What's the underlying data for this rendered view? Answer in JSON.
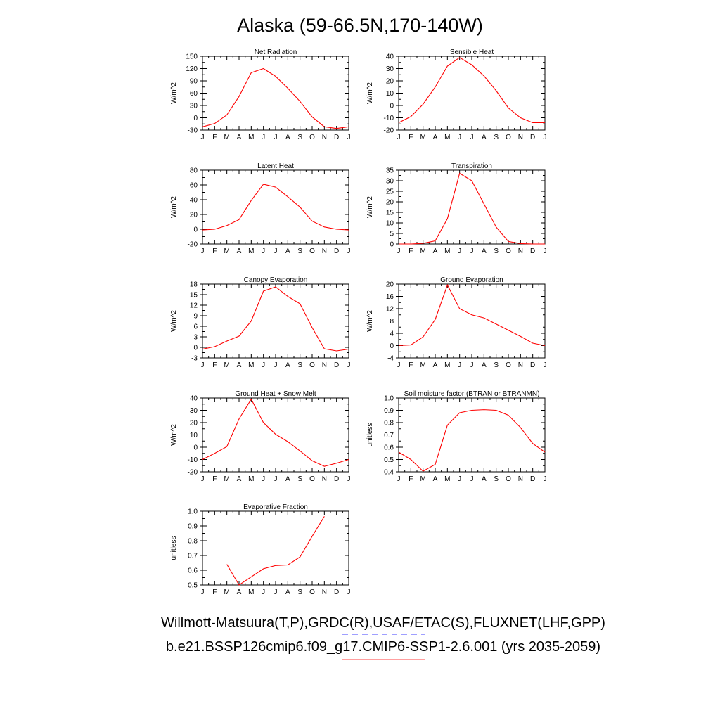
{
  "title": "Alaska (59-66.5N,170-140W)",
  "months": [
    "J",
    "F",
    "M",
    "A",
    "M",
    "J",
    "J",
    "A",
    "S",
    "O",
    "N",
    "D",
    "J"
  ],
  "colors": {
    "series": "#ff0000",
    "axis": "#000000",
    "legend_obs": "#6666ff",
    "legend_model": "#ff6666"
  },
  "legend": {
    "obs_line": "Willmott-Matsuura(T,P),GRDC(R),USAF/ETAC(S),FLUXNET(LHF,GPP)",
    "model_line": "b.e21.BSSP126cmip6.f09_g17.CMIP6-SSP1-2.6.001 (yrs 2035-2059)"
  },
  "chart_data": [
    {
      "type": "line",
      "title": "Net Radiation",
      "ylabel": "W/m^2",
      "ylim": [
        -30,
        150
      ],
      "yticks": [
        -30,
        0,
        30,
        60,
        90,
        120,
        150
      ],
      "ytick_labels": [
        "-30",
        "0",
        "30",
        "60",
        "90",
        "120",
        "150"
      ],
      "values": [
        -22,
        -14,
        7,
        52,
        110,
        120,
        101,
        72,
        40,
        2,
        -22,
        -26,
        -22
      ]
    },
    {
      "type": "line",
      "title": "Sensible Heat",
      "ylabel": "W/m^2",
      "ylim": [
        -20,
        40
      ],
      "yticks": [
        -20,
        -10,
        0,
        10,
        20,
        30,
        40
      ],
      "ytick_labels": [
        "-20",
        "-10",
        "0",
        "10",
        "20",
        "30",
        "40"
      ],
      "values": [
        -14,
        -9,
        1,
        15,
        32,
        39,
        33,
        24,
        12,
        -2,
        -10,
        -14,
        -14
      ]
    },
    {
      "type": "line",
      "title": "Latent Heat",
      "ylabel": "W/m^2",
      "ylim": [
        -20,
        80
      ],
      "yticks": [
        -20,
        0,
        20,
        40,
        60,
        80
      ],
      "ytick_labels": [
        "-20",
        "0",
        "20",
        "40",
        "60",
        "80"
      ],
      "values": [
        -1,
        0,
        5,
        13,
        39,
        61,
        57,
        44,
        30,
        11,
        3,
        0,
        -1
      ]
    },
    {
      "type": "line",
      "title": "Transpiration",
      "ylabel": "W/m^2",
      "ylim": [
        0,
        35
      ],
      "yticks": [
        0,
        5,
        10,
        15,
        20,
        25,
        30,
        35
      ],
      "ytick_labels": [
        "0",
        "5",
        "10",
        "15",
        "20",
        "25",
        "30",
        "35"
      ],
      "values": [
        0,
        0,
        0.3,
        1.5,
        12,
        33.5,
        30,
        19,
        8,
        1.2,
        0.2,
        0,
        0
      ]
    },
    {
      "type": "line",
      "title": "Canopy Evaporation",
      "ylabel": "W/m^2",
      "ylim": [
        -3,
        18
      ],
      "yticks": [
        -3,
        0,
        3,
        6,
        9,
        12,
        15,
        18
      ],
      "ytick_labels": [
        "-3",
        "0",
        "3",
        "6",
        "9",
        "12",
        "15",
        "18"
      ],
      "values": [
        -0.5,
        0.2,
        1.8,
        3.2,
        7.5,
        16,
        17.2,
        14.5,
        12.4,
        5.6,
        -0.4,
        -1,
        -0.5
      ]
    },
    {
      "type": "line",
      "title": "Ground Evaporation",
      "ylabel": "W/m^2",
      "ylim": [
        -4,
        20
      ],
      "yticks": [
        -4,
        0,
        4,
        8,
        12,
        16,
        20
      ],
      "ytick_labels": [
        "-4",
        "0",
        "4",
        "8",
        "12",
        "16",
        "20"
      ],
      "values": [
        0,
        0.2,
        2.8,
        8.5,
        19.7,
        12,
        10,
        9,
        7,
        5,
        3,
        0.8,
        0
      ]
    },
    {
      "type": "line",
      "title": "Ground Heat + Snow Melt",
      "ylabel": "W/m^2",
      "ylim": [
        -20,
        40
      ],
      "yticks": [
        -20,
        -10,
        0,
        10,
        20,
        30,
        40
      ],
      "ytick_labels": [
        "-20",
        "-10",
        "0",
        "10",
        "20",
        "30",
        "40"
      ],
      "values": [
        -10,
        -5,
        0.5,
        23,
        39,
        20,
        10.5,
        4.5,
        -3,
        -11,
        -15.5,
        -13,
        -10
      ]
    },
    {
      "type": "line",
      "title": "Soil moisture factor (BTRAN or BTRANMN)",
      "ylabel": "unitless",
      "ylim": [
        0.4,
        1.0
      ],
      "yticks": [
        0.4,
        0.5,
        0.6,
        0.7,
        0.8,
        0.9,
        1.0
      ],
      "ytick_labels": [
        "0.4",
        "0.5",
        "0.6",
        "0.7",
        "0.8",
        "0.9",
        "1.0"
      ],
      "values": [
        0.56,
        0.5,
        0.405,
        0.46,
        0.78,
        0.88,
        0.9,
        0.905,
        0.9,
        0.86,
        0.76,
        0.63,
        0.56
      ]
    },
    {
      "type": "line",
      "title": "Evaporative Fraction",
      "ylabel": "unitless",
      "ylim": [
        0.5,
        1.0
      ],
      "yticks": [
        0.5,
        0.6,
        0.7,
        0.8,
        0.9,
        1.0
      ],
      "ytick_labels": [
        "0.5",
        "0.6",
        "0.7",
        "0.8",
        "0.9",
        "1.0"
      ],
      "values": [
        null,
        null,
        0.64,
        0.5,
        0.555,
        0.61,
        0.632,
        0.636,
        0.69,
        0.83,
        0.965,
        null,
        null
      ]
    }
  ]
}
